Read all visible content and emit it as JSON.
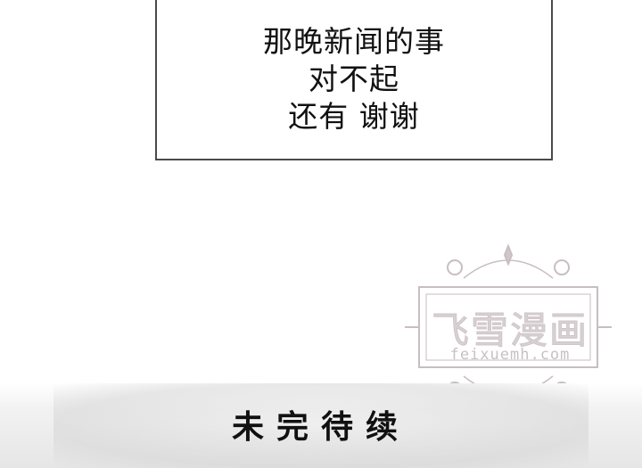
{
  "panel": {
    "lines": [
      "那晚新闻的事",
      "对不起",
      "还有 谢谢"
    ]
  },
  "watermark": {
    "title": "飞雪漫画",
    "url": "feixuemh.com"
  },
  "footer": {
    "text": "未完待续"
  }
}
